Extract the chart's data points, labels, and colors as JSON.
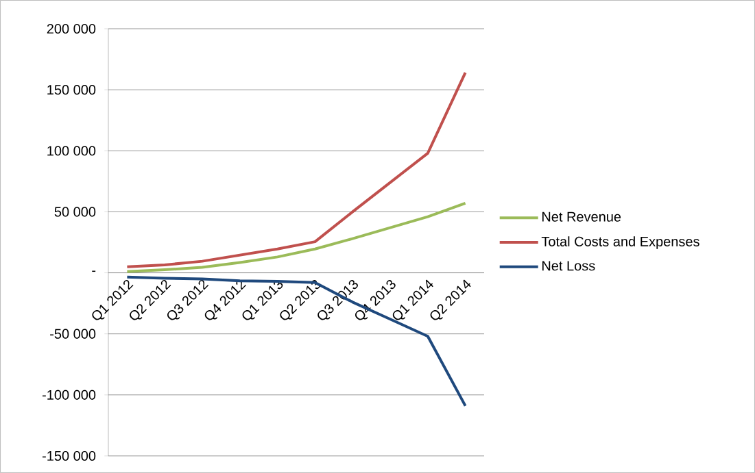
{
  "chart_data": {
    "type": "line",
    "categories": [
      "Q1 2012",
      "Q2 2012",
      "Q3 2012",
      "Q4 2012",
      "Q1 2013",
      "Q2 2013",
      "Q3 2013",
      "Q4 2013",
      "Q1 2014",
      "Q2 2014"
    ],
    "series": [
      {
        "name": "Net Revenue",
        "color": "#9bbb59",
        "values": [
          1000,
          2500,
          4500,
          8500,
          13000,
          19500,
          28000,
          37000,
          46000,
          57000
        ]
      },
      {
        "name": "Total Costs and Expenses",
        "color": "#c0504d",
        "values": [
          5000,
          6500,
          9500,
          14500,
          19500,
          25500,
          50000,
          74000,
          98000,
          164000
        ]
      },
      {
        "name": "Net Loss",
        "color": "#1f497d",
        "values": [
          -3500,
          -4500,
          -5000,
          -6500,
          -7000,
          -8000,
          -24000,
          -38000,
          -52000,
          -109000
        ]
      }
    ],
    "ylim": [
      -150000,
      200000
    ],
    "yticks": [
      {
        "value": -150000,
        "label": "-150 000"
      },
      {
        "value": -100000,
        "label": "-100 000"
      },
      {
        "value": -50000,
        "label": "-50 000"
      },
      {
        "value": 0,
        "label": "-"
      },
      {
        "value": 50000,
        "label": "50 000"
      },
      {
        "value": 100000,
        "label": "100 000"
      },
      {
        "value": 150000,
        "label": "150 000"
      },
      {
        "value": 200000,
        "label": "200 000"
      }
    ],
    "grid": "y",
    "legend": "right"
  }
}
